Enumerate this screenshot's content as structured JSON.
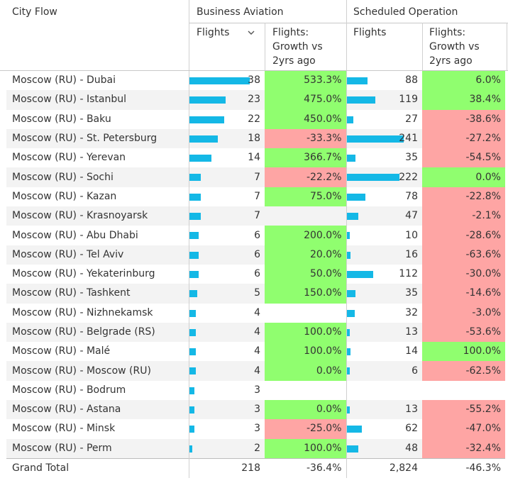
{
  "header": {
    "col_city": "City Flow",
    "group_business": "Business Aviation",
    "group_scheduled": "Scheduled Operation",
    "flights": "Flights",
    "growth": "Flights: Growth vs 2yrs ago"
  },
  "colors": {
    "bar": "#14b8e6",
    "positive": "#90fe6f",
    "negative": "#fea5a4"
  },
  "bar_scale": {
    "business_max": 38,
    "scheduled_max": 241
  },
  "rows": [
    {
      "city": "Moscow (RU) - Dubai",
      "bf": "38",
      "bg": "533.3%",
      "bs": "pos",
      "sf": "88",
      "sg": "6.0%",
      "ss": "pos"
    },
    {
      "city": "Moscow (RU) - Istanbul",
      "bf": "23",
      "bg": "475.0%",
      "bs": "pos",
      "sf": "119",
      "sg": "38.4%",
      "ss": "pos"
    },
    {
      "city": "Moscow (RU) - Baku",
      "bf": "22",
      "bg": "450.0%",
      "bs": "pos",
      "sf": "27",
      "sg": "-38.6%",
      "ss": "neg"
    },
    {
      "city": "Moscow (RU) - St. Petersburg",
      "bf": "18",
      "bg": "-33.3%",
      "bs": "neg",
      "sf": "241",
      "sg": "-27.2%",
      "ss": "neg"
    },
    {
      "city": "Moscow (RU) - Yerevan",
      "bf": "14",
      "bg": "366.7%",
      "bs": "pos",
      "sf": "35",
      "sg": "-54.5%",
      "ss": "neg"
    },
    {
      "city": "Moscow (RU) - Sochi",
      "bf": "7",
      "bg": "-22.2%",
      "bs": "neg",
      "sf": "222",
      "sg": "0.0%",
      "ss": "pos"
    },
    {
      "city": "Moscow (RU) - Kazan",
      "bf": "7",
      "bg": "75.0%",
      "bs": "pos",
      "sf": "78",
      "sg": "-22.8%",
      "ss": "neg"
    },
    {
      "city": "Moscow (RU) - Krasnoyarsk",
      "bf": "7",
      "bg": "",
      "bs": "",
      "sf": "47",
      "sg": "-2.1%",
      "ss": "neg"
    },
    {
      "city": "Moscow (RU) - Abu Dhabi",
      "bf": "6",
      "bg": "200.0%",
      "bs": "pos",
      "sf": "10",
      "sg": "-28.6%",
      "ss": "neg"
    },
    {
      "city": "Moscow (RU) - Tel Aviv",
      "bf": "6",
      "bg": "20.0%",
      "bs": "pos",
      "sf": "16",
      "sg": "-63.6%",
      "ss": "neg"
    },
    {
      "city": "Moscow (RU) - Yekaterinburg",
      "bf": "6",
      "bg": "50.0%",
      "bs": "pos",
      "sf": "112",
      "sg": "-30.0%",
      "ss": "neg"
    },
    {
      "city": "Moscow (RU) - Tashkent",
      "bf": "5",
      "bg": "150.0%",
      "bs": "pos",
      "sf": "35",
      "sg": "-14.6%",
      "ss": "neg"
    },
    {
      "city": "Moscow (RU) - Nizhnekamsk",
      "bf": "4",
      "bg": "",
      "bs": "none",
      "sf": "32",
      "sg": "-3.0%",
      "ss": "neg"
    },
    {
      "city": "Moscow (RU) - Belgrade (RS)",
      "bf": "4",
      "bg": "100.0%",
      "bs": "pos",
      "sf": "13",
      "sg": "-53.6%",
      "ss": "neg"
    },
    {
      "city": "Moscow (RU) - Malé",
      "bf": "4",
      "bg": "100.0%",
      "bs": "pos",
      "sf": "14",
      "sg": "100.0%",
      "ss": "pos"
    },
    {
      "city": "Moscow (RU) - Moscow (RU)",
      "bf": "4",
      "bg": "0.0%",
      "bs": "pos",
      "sf": "6",
      "sg": "-62.5%",
      "ss": "neg"
    },
    {
      "city": "Moscow (RU) - Bodrum",
      "bf": "3",
      "bg": "",
      "bs": "none",
      "sf": "",
      "sg": "",
      "ss": "none"
    },
    {
      "city": "Moscow (RU) - Astana",
      "bf": "3",
      "bg": "0.0%",
      "bs": "pos",
      "sf": "13",
      "sg": "-55.2%",
      "ss": "neg"
    },
    {
      "city": "Moscow (RU) - Minsk",
      "bf": "3",
      "bg": "-25.0%",
      "bs": "neg",
      "sf": "62",
      "sg": "-47.0%",
      "ss": "neg"
    },
    {
      "city": "Moscow (RU) - Perm",
      "bf": "2",
      "bg": "100.0%",
      "bs": "pos",
      "sf": "48",
      "sg": "-32.4%",
      "ss": "neg"
    }
  ],
  "total": {
    "label": "Grand Total",
    "bf": "218",
    "bg": "-36.4%",
    "sf": "2,824",
    "sg": "-46.3%"
  }
}
